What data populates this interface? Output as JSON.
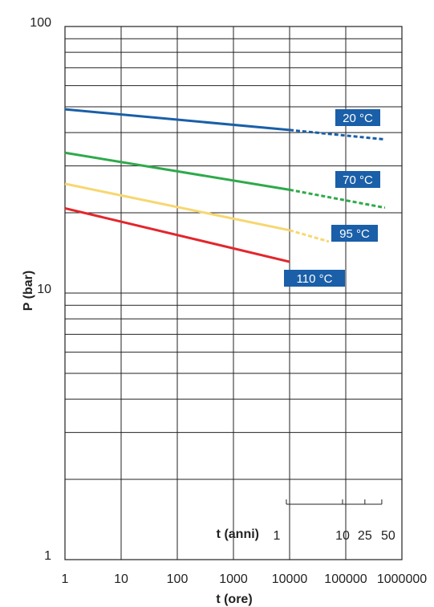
{
  "chart_data": {
    "type": "line",
    "x_scale": "log",
    "y_scale": "log",
    "xlabel": "t (ore)",
    "ylabel": "P (bar)",
    "xlim": [
      1,
      1000000
    ],
    "ylim": [
      1,
      100
    ],
    "grid": true,
    "x_ticks": [
      "1",
      "10",
      "100",
      "1000",
      "10000",
      "100000",
      "1000000"
    ],
    "y_ticks": [
      "1",
      "10",
      "100"
    ],
    "secondary_axis": {
      "label": "t (anni)",
      "ticks": [
        {
          "label": "1",
          "hours": 8760
        },
        {
          "label": "10",
          "hours": 87600
        },
        {
          "label": "25",
          "hours": 219000
        },
        {
          "label": "50",
          "hours": 438000
        }
      ]
    },
    "series": [
      {
        "name": "20 °C",
        "color": "#1a5fa8",
        "solid": {
          "x": [
            1,
            10000
          ],
          "y": [
            48.9,
            40.9
          ]
        },
        "dashed": {
          "x": [
            10000,
            500000
          ],
          "y": [
            40.9,
            37.7
          ]
        }
      },
      {
        "name": "70 °C",
        "color": "#2eaa4a",
        "solid": {
          "x": [
            1,
            10000
          ],
          "y": [
            33.6,
            24.4
          ]
        },
        "dashed": {
          "x": [
            10000,
            500000
          ],
          "y": [
            24.4,
            20.9
          ]
        }
      },
      {
        "name": "95 °C",
        "color": "#f7d770",
        "solid": {
          "x": [
            1,
            10000
          ],
          "y": [
            25.7,
            17.2
          ]
        },
        "dashed": {
          "x": [
            10000,
            50000
          ],
          "y": [
            17.2,
            15.6
          ]
        }
      },
      {
        "name": "110 °C",
        "color": "#e3262b",
        "solid": {
          "x": [
            1,
            10000
          ],
          "y": [
            20.8,
            13.1
          ]
        }
      }
    ],
    "label_color": "#1a5fa8"
  }
}
